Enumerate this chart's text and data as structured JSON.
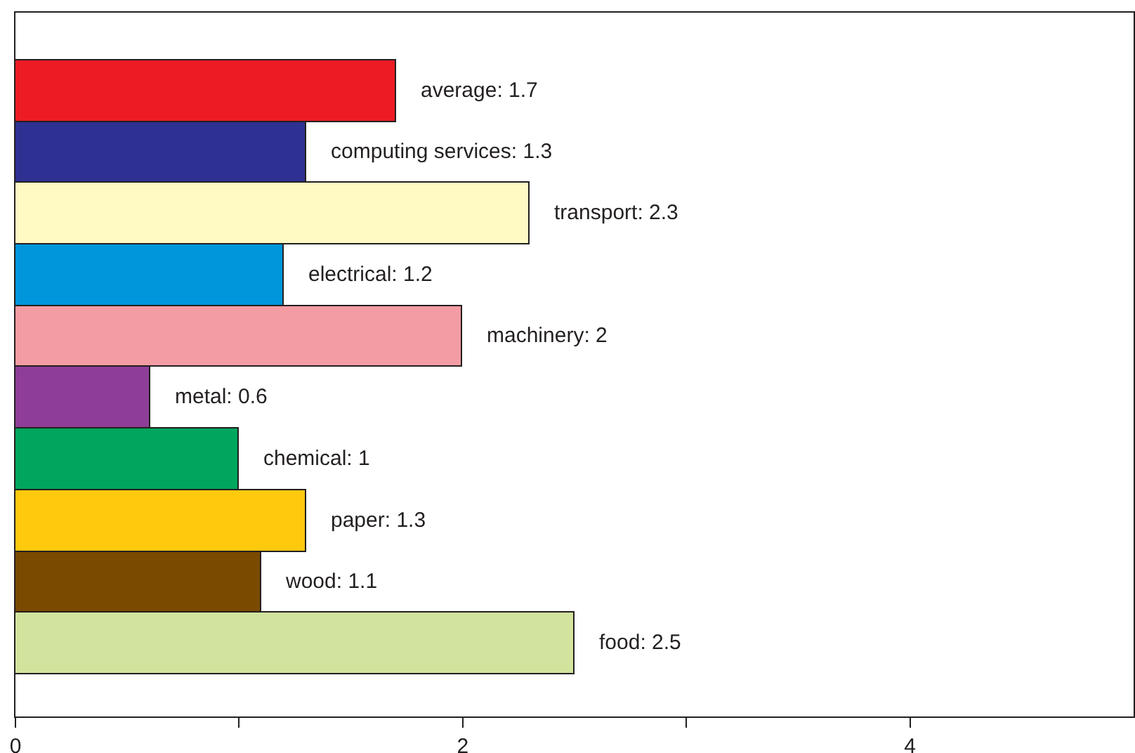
{
  "chart_data": {
    "type": "bar",
    "orientation": "horizontal",
    "categories": [
      null,
      null,
      null,
      null,
      null,
      null,
      null,
      null,
      null,
      null
    ],
    "values": [
      1.7,
      1.3,
      2.3,
      1.2,
      2,
      0.6,
      1,
      1.3,
      1.1,
      2.5
    ],
    "colors": [
      "#ed1c24",
      "#2e3192",
      "#fff9c4",
      "#0096db",
      "#f49ca3",
      "#8e3e97",
      "#00a65d",
      "#ffc90e",
      "#7a4a00",
      "#d1e39d"
    ],
    "value_labels": [
      "average: 1.7",
      "computing services: 1.3",
      "transport: 2.3",
      "electrical: 1.2",
      "machinery: 2",
      "metal: 0.6",
      "chemical: 1",
      "paper: 1.3",
      "wood: 1.1",
      "food: 2.5"
    ],
    "xlim": [
      0,
      5
    ],
    "xticks": [
      0,
      {
        "value": 1,
        "label": null
      },
      2,
      {
        "value": 3,
        "label": null
      },
      4
    ],
    "tick_labels": "x"
  }
}
